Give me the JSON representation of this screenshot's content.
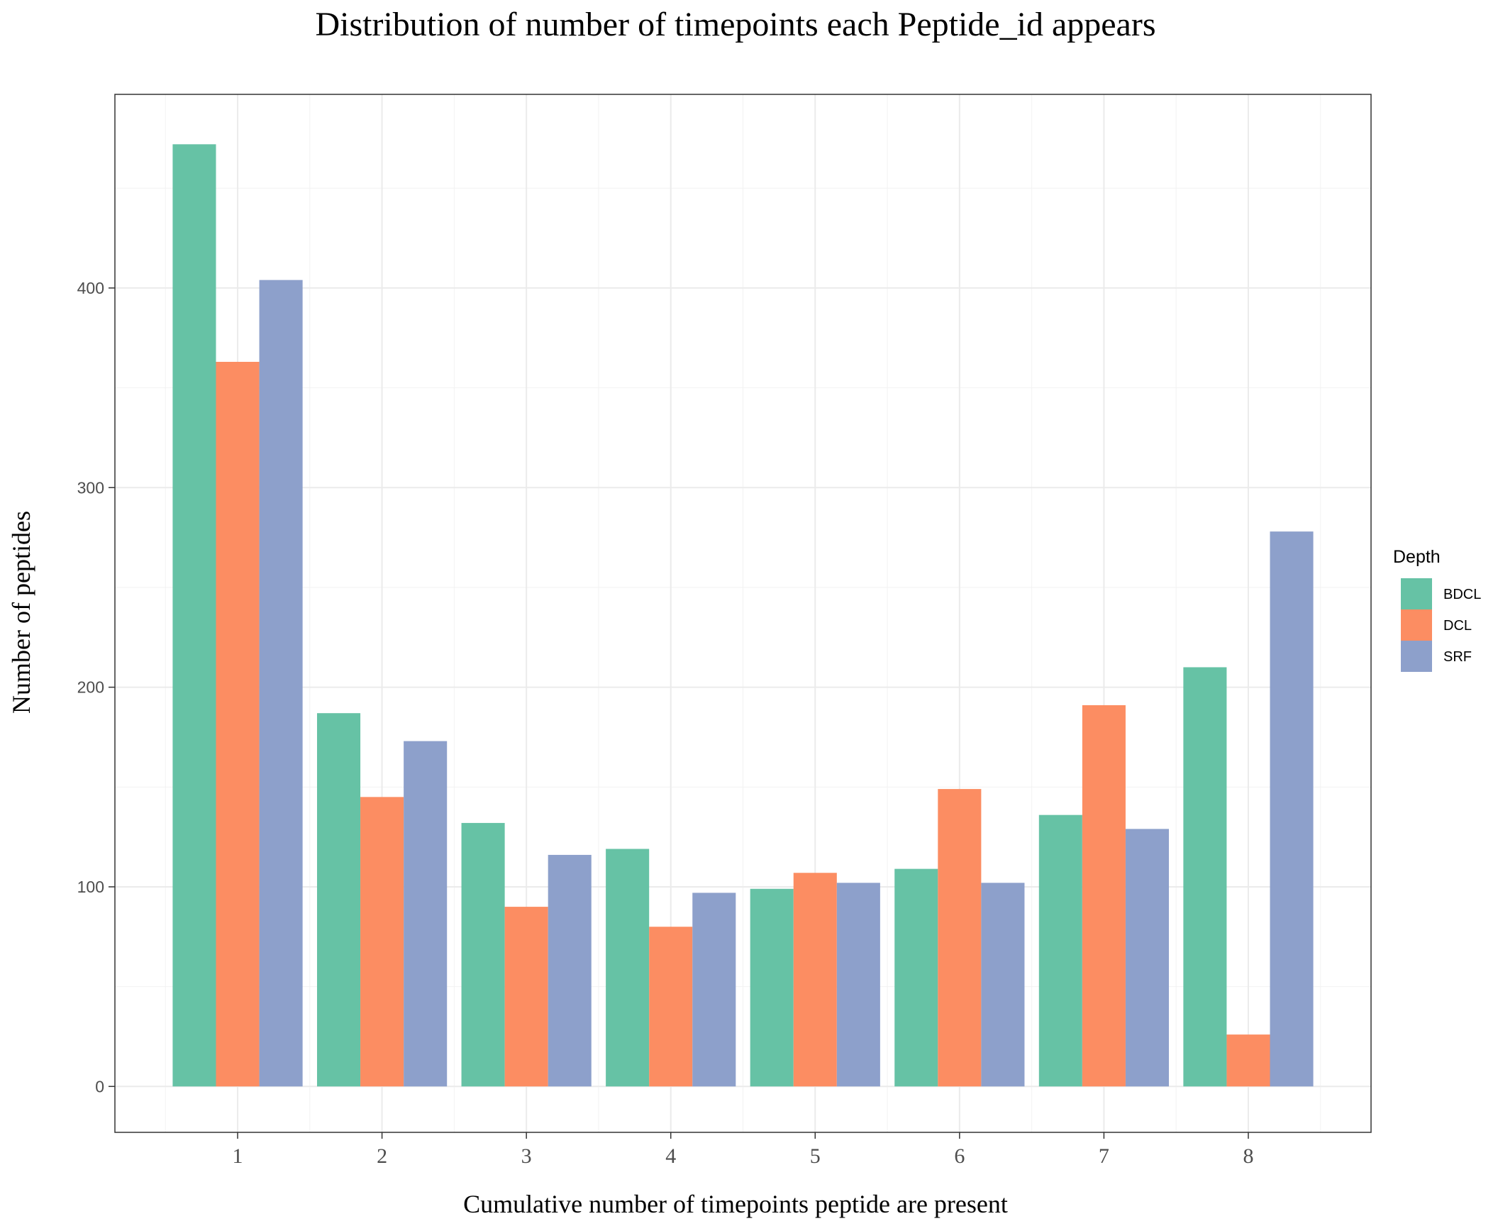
{
  "chart_data": {
    "type": "bar",
    "title": "Distribution of number of timepoints each Peptide_id appears",
    "xlabel": "Cumulative number of timepoints peptide are present",
    "ylabel": "Number of peptides",
    "categories": [
      "1",
      "2",
      "3",
      "4",
      "5",
      "6",
      "7",
      "8"
    ],
    "series": [
      {
        "name": "BDCL",
        "color": "#66c2a5",
        "values": [
          472,
          187,
          132,
          119,
          99,
          109,
          136,
          210
        ]
      },
      {
        "name": "DCL",
        "color": "#fc8d62",
        "values": [
          363,
          145,
          90,
          80,
          107,
          149,
          191,
          26
        ]
      },
      {
        "name": "SRF",
        "color": "#8da0cb",
        "values": [
          404,
          173,
          116,
          97,
          102,
          102,
          129,
          278
        ]
      }
    ],
    "ylim": [
      -23,
      497
    ],
    "yticks": [
      0,
      100,
      200,
      300,
      400
    ],
    "legend": {
      "title": "Depth",
      "position": "right"
    },
    "grid": true
  }
}
